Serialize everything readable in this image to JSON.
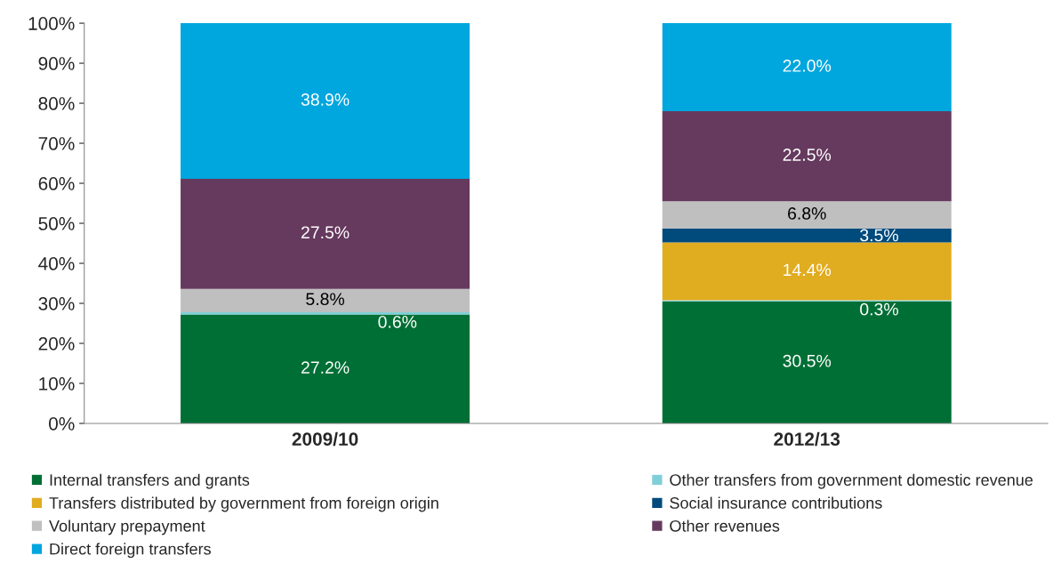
{
  "chart_data": {
    "type": "bar",
    "stacked": true,
    "categories": [
      "2009/10",
      "2012/13"
    ],
    "series": [
      {
        "name": "Internal transfers and grants",
        "color": "#006f35",
        "values": [
          27.2,
          30.5
        ],
        "value_labels": [
          "27.2%",
          "30.5%"
        ]
      },
      {
        "name": "Other transfers from government domestic revenue",
        "color": "#7fcfd8",
        "values": [
          0.6,
          0.3
        ],
        "value_labels": [
          "0.6%",
          "0.3%"
        ]
      },
      {
        "name": "Transfers distributed by government from foreign origin",
        "color": "#e0ac20",
        "values": [
          null,
          14.4
        ],
        "value_labels": [
          null,
          "14.4%"
        ]
      },
      {
        "name": "Social insurance contributions",
        "color": "#004a7c",
        "values": [
          null,
          3.5
        ],
        "value_labels": [
          null,
          "3.5%"
        ]
      },
      {
        "name": "Voluntary prepayment",
        "color": "#bfbfbf",
        "values": [
          5.8,
          6.8
        ],
        "value_labels": [
          "5.8%",
          "6.8%"
        ]
      },
      {
        "name": "Other revenues",
        "color": "#663a5e",
        "values": [
          27.5,
          22.5
        ],
        "value_labels": [
          "27.5%",
          "22.5%"
        ]
      },
      {
        "name": "Direct foreign transfers",
        "color": "#00a6de",
        "values": [
          38.9,
          22.0
        ],
        "value_labels": [
          "38.9%",
          "22.0%"
        ]
      }
    ],
    "ylim": [
      0,
      100
    ],
    "yticks": [
      {
        "value": 0,
        "label": "0%"
      },
      {
        "value": 10,
        "label": "10%"
      },
      {
        "value": 20,
        "label": "20%"
      },
      {
        "value": 30,
        "label": "30%"
      },
      {
        "value": 40,
        "label": "40%"
      },
      {
        "value": 50,
        "label": "50%"
      },
      {
        "value": 60,
        "label": "60%"
      },
      {
        "value": 70,
        "label": "70%"
      },
      {
        "value": 80,
        "label": "80%"
      },
      {
        "value": 90,
        "label": "90%"
      },
      {
        "value": 100,
        "label": "100%"
      }
    ],
    "grid": false,
    "legend": "bottom"
  }
}
